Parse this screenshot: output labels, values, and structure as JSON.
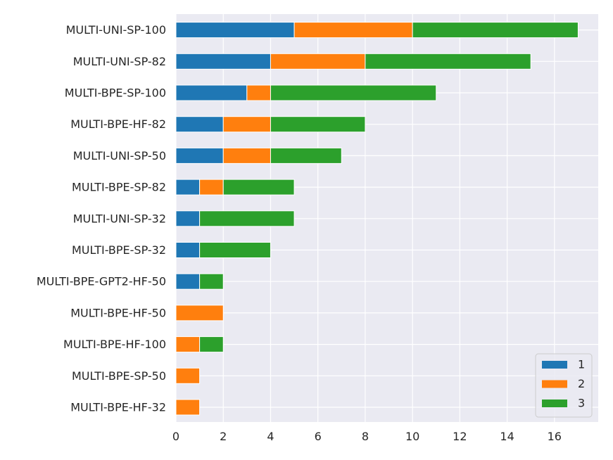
{
  "chart_data": {
    "type": "bar",
    "orientation": "horizontal",
    "stacked": true,
    "categories": [
      "MULTI-UNI-SP-100",
      "MULTI-UNI-SP-82",
      "MULTI-BPE-SP-100",
      "MULTI-BPE-HF-82",
      "MULTI-UNI-SP-50",
      "MULTI-BPE-SP-82",
      "MULTI-UNI-SP-32",
      "MULTI-BPE-SP-32",
      "MULTI-BPE-GPT2-HF-50",
      "MULTI-BPE-HF-50",
      "MULTI-BPE-HF-100",
      "MULTI-BPE-SP-50",
      "MULTI-BPE-HF-32"
    ],
    "series": [
      {
        "name": "1",
        "color": "#1f77b4",
        "values": [
          5,
          4,
          3,
          2,
          2,
          1,
          1,
          1,
          1,
          0,
          0,
          0,
          0
        ]
      },
      {
        "name": "2",
        "color": "#ff7f0e",
        "values": [
          5,
          4,
          1,
          2,
          2,
          1,
          0,
          0,
          0,
          2,
          1,
          1,
          1
        ]
      },
      {
        "name": "3",
        "color": "#2ca02c",
        "values": [
          7,
          7,
          7,
          4,
          3,
          3,
          4,
          3,
          1,
          0,
          1,
          0,
          0
        ]
      }
    ],
    "xlim": [
      0,
      17.85
    ],
    "xticks": [
      0,
      2,
      4,
      6,
      8,
      10,
      12,
      14,
      16
    ],
    "title": "",
    "xlabel": "",
    "ylabel": "",
    "grid": true,
    "legend_position": "lower-right",
    "background": "#eaeaf2"
  }
}
